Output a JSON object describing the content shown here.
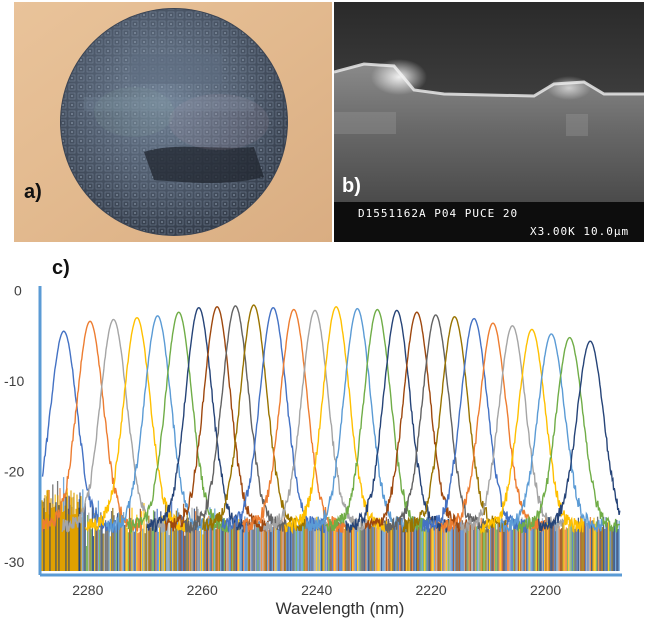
{
  "panels": {
    "a": {
      "label": "a)"
    },
    "b": {
      "label": "b)",
      "caption_line1": "D1551162A P04 PUCE 20",
      "caption_line2": "X3.00K  10.0µm"
    },
    "c": {
      "label": "c)"
    }
  },
  "chart_data": {
    "type": "line",
    "title": "",
    "xlabel": "Wavelength (nm)",
    "ylabel": "",
    "xlim": [
      2288,
      2187
    ],
    "ylim": [
      -31,
      0.5
    ],
    "x_reversed": true,
    "x_ticks": [
      2280,
      2260,
      2240,
      2220,
      2200
    ],
    "y_ticks": [
      0,
      -10,
      -20,
      -30
    ],
    "x_tick_labels": [
      "2280",
      "2260",
      "2240",
      "2220",
      "2200"
    ],
    "y_tick_labels": [
      "0",
      "-10",
      "-20",
      "-30"
    ],
    "grid": false,
    "legend": "none",
    "noise_floor_db": -26,
    "peak_width_nm": 2.3,
    "series_colors": [
      "#4472c4",
      "#ed7d31",
      "#a5a5a5",
      "#ffc000",
      "#5b9bd5",
      "#70ad47",
      "#264478",
      "#9e480e",
      "#636363",
      "#997300"
    ],
    "series": [
      {
        "peak_nm": 2284.2,
        "peak_db": -4.5
      },
      {
        "peak_nm": 2279.6,
        "peak_db": -3.4
      },
      {
        "peak_nm": 2275.5,
        "peak_db": -3.2
      },
      {
        "peak_nm": 2271.4,
        "peak_db": -3.0
      },
      {
        "peak_nm": 2267.8,
        "peak_db": -2.8
      },
      {
        "peak_nm": 2264.1,
        "peak_db": -2.4
      },
      {
        "peak_nm": 2260.6,
        "peak_db": -1.9
      },
      {
        "peak_nm": 2257.4,
        "peak_db": -1.8
      },
      {
        "peak_nm": 2254.2,
        "peak_db": -1.7
      },
      {
        "peak_nm": 2251.0,
        "peak_db": -1.6
      },
      {
        "peak_nm": 2247.6,
        "peak_db": -1.9
      },
      {
        "peak_nm": 2244.0,
        "peak_db": -2.1
      },
      {
        "peak_nm": 2240.3,
        "peak_db": -2.2
      },
      {
        "peak_nm": 2236.6,
        "peak_db": -1.8
      },
      {
        "peak_nm": 2232.9,
        "peak_db": -2.0
      },
      {
        "peak_nm": 2229.4,
        "peak_db": -2.1
      },
      {
        "peak_nm": 2226.0,
        "peak_db": -2.2
      },
      {
        "peak_nm": 2222.5,
        "peak_db": -2.4
      },
      {
        "peak_nm": 2219.2,
        "peak_db": -2.7
      },
      {
        "peak_nm": 2215.9,
        "peak_db": -2.9
      },
      {
        "peak_nm": 2212.5,
        "peak_db": -3.1
      },
      {
        "peak_nm": 2209.2,
        "peak_db": -3.6
      },
      {
        "peak_nm": 2205.8,
        "peak_db": -3.9
      },
      {
        "peak_nm": 2202.4,
        "peak_db": -4.3
      },
      {
        "peak_nm": 2199.0,
        "peak_db": -4.8
      },
      {
        "peak_nm": 2195.8,
        "peak_db": -5.2
      },
      {
        "peak_nm": 2192.2,
        "peak_db": -5.6
      }
    ]
  }
}
